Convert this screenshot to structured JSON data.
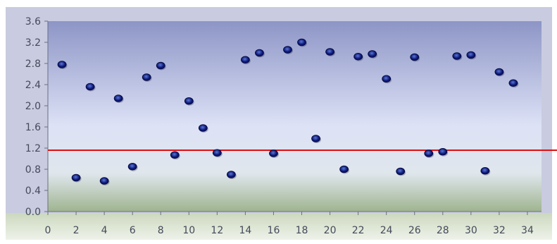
{
  "chart_data": {
    "type": "scatter",
    "title": "",
    "xlabel": "",
    "ylabel": "",
    "xlim": [
      0,
      35
    ],
    "ylim": [
      0,
      3.6
    ],
    "x_ticks": [
      0,
      2,
      4,
      6,
      8,
      10,
      12,
      14,
      16,
      18,
      20,
      22,
      24,
      26,
      28,
      30,
      32,
      34
    ],
    "y_ticks": [
      "0.0",
      "0.4",
      "0.8",
      "1.2",
      "1.6",
      "2.0",
      "2.4",
      "2.8",
      "3.2",
      "3.6"
    ],
    "grid": false,
    "legend": "none",
    "series": [
      {
        "x": [
          1,
          2,
          3,
          4,
          5,
          6,
          7,
          8,
          9,
          10,
          11,
          12,
          13,
          14,
          15,
          16,
          17,
          18,
          19,
          20,
          21,
          22,
          23,
          24,
          25,
          26,
          27,
          28,
          29,
          30,
          31,
          32,
          33
        ],
        "y": [
          2.78,
          0.64,
          2.36,
          0.58,
          2.14,
          0.85,
          2.54,
          2.76,
          1.07,
          2.09,
          1.58,
          1.11,
          0.7,
          2.87,
          3.0,
          1.1,
          3.06,
          3.2,
          1.38,
          3.02,
          0.8,
          2.93,
          2.98,
          2.51,
          0.76,
          2.92,
          1.1,
          1.13,
          2.94,
          2.96,
          0.77,
          2.64,
          2.43
        ],
        "color": "#0a1470"
      }
    ],
    "reference_line": {
      "y": 1.16,
      "color": "#e01010"
    },
    "colors": {
      "plot_top": "#8d95c6",
      "plot_mid": "#dde2f6",
      "plot_bottom": "#9fb48f",
      "axis_band_top": "#ccd8be",
      "axis_band_bottom": "#eef2ea",
      "marker": "#0a1470",
      "marker_highlight": "#5a78d8"
    }
  }
}
